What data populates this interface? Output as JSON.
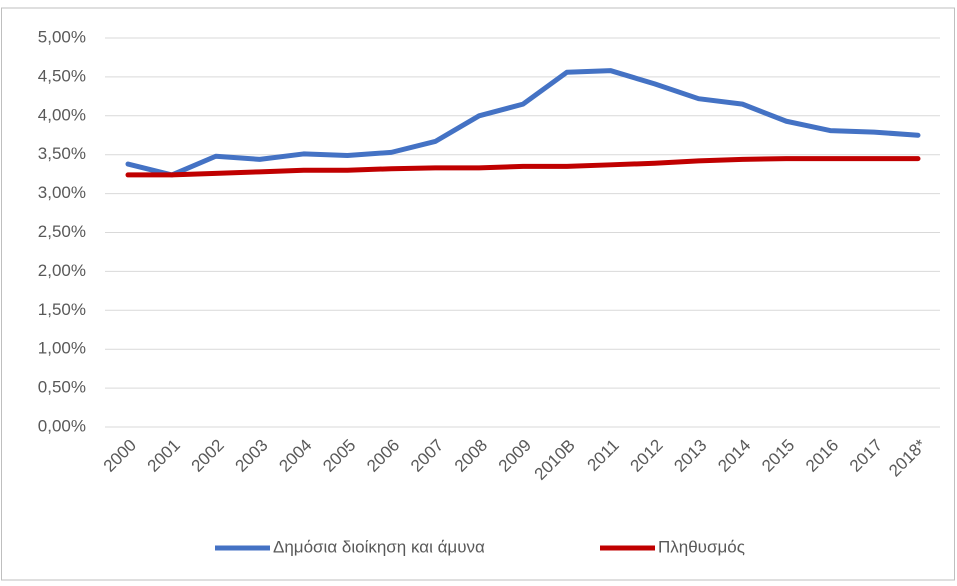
{
  "chart_data": {
    "type": "line",
    "categories": [
      "2000",
      "2001",
      "2002",
      "2003",
      "2004",
      "2005",
      "2006",
      "2007",
      "2008",
      "2009",
      "2010B",
      "2011",
      "2012",
      "2013",
      "2014",
      "2015",
      "2016",
      "2017",
      "2018*"
    ],
    "series": [
      {
        "name": "Δημόσια διοίκηση και άμυνα",
        "color": "#4472c4",
        "values": [
          3.38,
          3.24,
          3.48,
          3.44,
          3.51,
          3.49,
          3.53,
          3.67,
          4.0,
          4.15,
          4.56,
          4.58,
          4.41,
          4.22,
          4.15,
          3.93,
          3.81,
          3.79,
          3.75
        ]
      },
      {
        "name": "Πληθυσμός",
        "color": "#c00000",
        "values": [
          3.24,
          3.24,
          3.26,
          3.28,
          3.3,
          3.3,
          3.32,
          3.33,
          3.33,
          3.35,
          3.35,
          3.37,
          3.39,
          3.42,
          3.44,
          3.45,
          3.45,
          3.45,
          3.45
        ]
      }
    ],
    "ylim": [
      0,
      5
    ],
    "yticks": [
      {
        "value": 0,
        "label": "0,00%"
      },
      {
        "value": 0.5,
        "label": "0,50%"
      },
      {
        "value": 1,
        "label": "1,00%"
      },
      {
        "value": 1.5,
        "label": "1,50%"
      },
      {
        "value": 2,
        "label": "2,00%"
      },
      {
        "value": 2.5,
        "label": "2,50%"
      },
      {
        "value": 3,
        "label": "3,00%"
      },
      {
        "value": 3.5,
        "label": "3,50%"
      },
      {
        "value": 4,
        "label": "4,00%"
      },
      {
        "value": 4.5,
        "label": "4,50%"
      },
      {
        "value": 5,
        "label": "5,00%"
      }
    ],
    "grid": true,
    "legend": "bottom"
  }
}
